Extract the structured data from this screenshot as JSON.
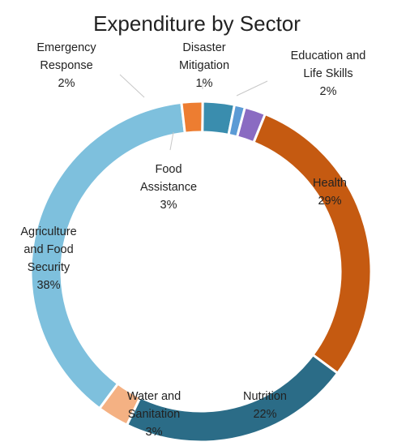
{
  "chart_data": {
    "type": "pie",
    "donut": true,
    "title": "Expenditure by Sector",
    "slices": [
      {
        "label": [
          "Education and",
          "Life Skills",
          "2%"
        ],
        "value": 2,
        "color": "#8A6BC2"
      },
      {
        "label": [
          "Health",
          "29%"
        ],
        "value": 29,
        "color": "#C55A11"
      },
      {
        "label": [
          "Nutrition",
          "22%"
        ],
        "value": 22,
        "color": "#2B6C87"
      },
      {
        "label": [
          "Water and",
          "Sanitation",
          "3%"
        ],
        "value": 3,
        "color": "#F4B183"
      },
      {
        "label": [
          "Agriculture",
          "and Food",
          "Security",
          "38%"
        ],
        "value": 38,
        "color": "#7EC0DD"
      },
      {
        "label": [
          "Emergency",
          "Response",
          "2%"
        ],
        "value": 2,
        "color": "#ED7D31"
      },
      {
        "label": [
          "Food",
          "Assistance",
          "3%"
        ],
        "value": 3,
        "color": "#3A8DAE"
      },
      {
        "label": [
          "Disaster",
          "Mitigation",
          "1%"
        ],
        "value": 1,
        "color": "#5B9BD5"
      }
    ],
    "legend": "none"
  }
}
